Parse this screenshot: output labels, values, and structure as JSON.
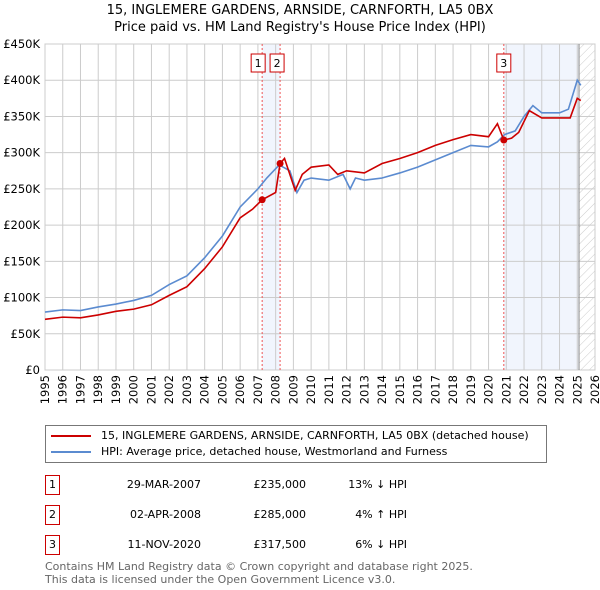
{
  "header": {
    "title": "15, INGLEMERE GARDENS, ARNSIDE, CARNFORTH, LA5 0BX",
    "subtitle": "Price paid vs. HM Land Registry's House Price Index (HPI)"
  },
  "chart_data": {
    "type": "line",
    "title": "15, INGLEMERE GARDENS, ARNSIDE, CARNFORTH, LA5 0BX",
    "subtitle": "Price paid vs. HM Land Registry's House Price Index (HPI)",
    "xlim": [
      1995,
      2026
    ],
    "ylim": [
      0,
      450000
    ],
    "x_ticks": [
      "1995",
      "1996",
      "1997",
      "1998",
      "1999",
      "2000",
      "2001",
      "2002",
      "2003",
      "2004",
      "2005",
      "2006",
      "2007",
      "2008",
      "2009",
      "2010",
      "2011",
      "2012",
      "2013",
      "2014",
      "2015",
      "2016",
      "2017",
      "2018",
      "2019",
      "2020",
      "2021",
      "2022",
      "2023",
      "2024",
      "2025",
      "2026"
    ],
    "y_ticks": [
      {
        "v": 0,
        "label": "£0"
      },
      {
        "v": 50000,
        "label": "£50K"
      },
      {
        "v": 100000,
        "label": "£100K"
      },
      {
        "v": 150000,
        "label": "£150K"
      },
      {
        "v": 200000,
        "label": "£200K"
      },
      {
        "v": 250000,
        "label": "£250K"
      },
      {
        "v": 300000,
        "label": "£300K"
      },
      {
        "v": 350000,
        "label": "£350K"
      },
      {
        "v": 400000,
        "label": "£400K"
      },
      {
        "v": 450000,
        "label": "£450K"
      }
    ],
    "grid": true,
    "series": [
      {
        "name": "15, INGLEMERE GARDENS, ARNSIDE, CARNFORTH, LA5 0BX (detached house)",
        "color": "#cc0000",
        "x": [
          1995,
          1996,
          1997,
          1998,
          1999,
          2000,
          2001,
          2002,
          2003,
          2004,
          2005,
          2006,
          2006.7,
          2007.24,
          2008,
          2008.25,
          2008.5,
          2009.1,
          2009.5,
          2010,
          2011,
          2011.5,
          2012,
          2013,
          2014,
          2015,
          2016,
          2017,
          2018,
          2019,
          2020,
          2020.5,
          2020.86,
          2021.3,
          2021.7,
          2022.3,
          2023,
          2024,
          2024.6,
          2025,
          2025.2
        ],
        "y": [
          70000,
          73000,
          72000,
          76000,
          81000,
          84000,
          90000,
          103000,
          115000,
          140000,
          170000,
          210000,
          222000,
          235000,
          245000,
          285000,
          292000,
          248000,
          270000,
          280000,
          283000,
          270000,
          275000,
          272000,
          285000,
          292000,
          300000,
          310000,
          318000,
          325000,
          322000,
          340000,
          317500,
          320000,
          328000,
          358000,
          348000,
          348000,
          348000,
          375000,
          372000
        ]
      },
      {
        "name": "HPI: Average price, detached house, Westmorland and Furness",
        "color": "#5b8bd0",
        "x": [
          1995,
          1996,
          1997,
          1998,
          1999,
          2000,
          2001,
          2002,
          2003,
          2004,
          2005,
          2006,
          2007,
          2007.5,
          2008.2,
          2008.8,
          2009.2,
          2009.6,
          2010,
          2011,
          2011.8,
          2012.2,
          2012.5,
          2013,
          2014,
          2015,
          2016,
          2017,
          2018,
          2019,
          2020,
          2020.5,
          2020.9,
          2021.5,
          2022,
          2022.5,
          2023,
          2024,
          2024.5,
          2025,
          2025.2
        ],
        "y": [
          80000,
          83000,
          82000,
          87000,
          91000,
          96000,
          103000,
          118000,
          130000,
          155000,
          185000,
          225000,
          250000,
          265000,
          283000,
          275000,
          245000,
          262000,
          265000,
          262000,
          270000,
          250000,
          265000,
          262000,
          265000,
          272000,
          280000,
          290000,
          300000,
          310000,
          308000,
          315000,
          325000,
          330000,
          350000,
          365000,
          355000,
          355000,
          360000,
          400000,
          393000
        ]
      }
    ],
    "sales": [
      {
        "n": "1",
        "x": 2007.24,
        "y": 235000
      },
      {
        "n": "2",
        "x": 2008.25,
        "y": 285000
      },
      {
        "n": "3",
        "x": 2020.86,
        "y": 317500
      }
    ],
    "shaded": [
      [
        2007.24,
        2008.25
      ],
      [
        2020.86,
        2025.1
      ]
    ],
    "forecast_from": 2025.1,
    "legend_placement": "below"
  },
  "legend": {
    "items": [
      {
        "label": "15, INGLEMERE GARDENS, ARNSIDE, CARNFORTH, LA5 0BX (detached house)",
        "color": "#cc0000"
      },
      {
        "label": "HPI: Average price, detached house, Westmorland and Furness",
        "color": "#5b8bd0"
      }
    ]
  },
  "transactions": [
    {
      "n": "1",
      "date": "29-MAR-2007",
      "price": "£235,000",
      "hpi": "13% ↓ HPI"
    },
    {
      "n": "2",
      "date": "02-APR-2008",
      "price": "£285,000",
      "hpi": "4% ↑ HPI"
    },
    {
      "n": "3",
      "date": "11-NOV-2020",
      "price": "£317,500",
      "hpi": "6% ↓ HPI"
    }
  ],
  "footer": {
    "line1": "Contains HM Land Registry data © Crown copyright and database right 2025.",
    "line2": "This data is licensed under the Open Government Licence v3.0."
  }
}
